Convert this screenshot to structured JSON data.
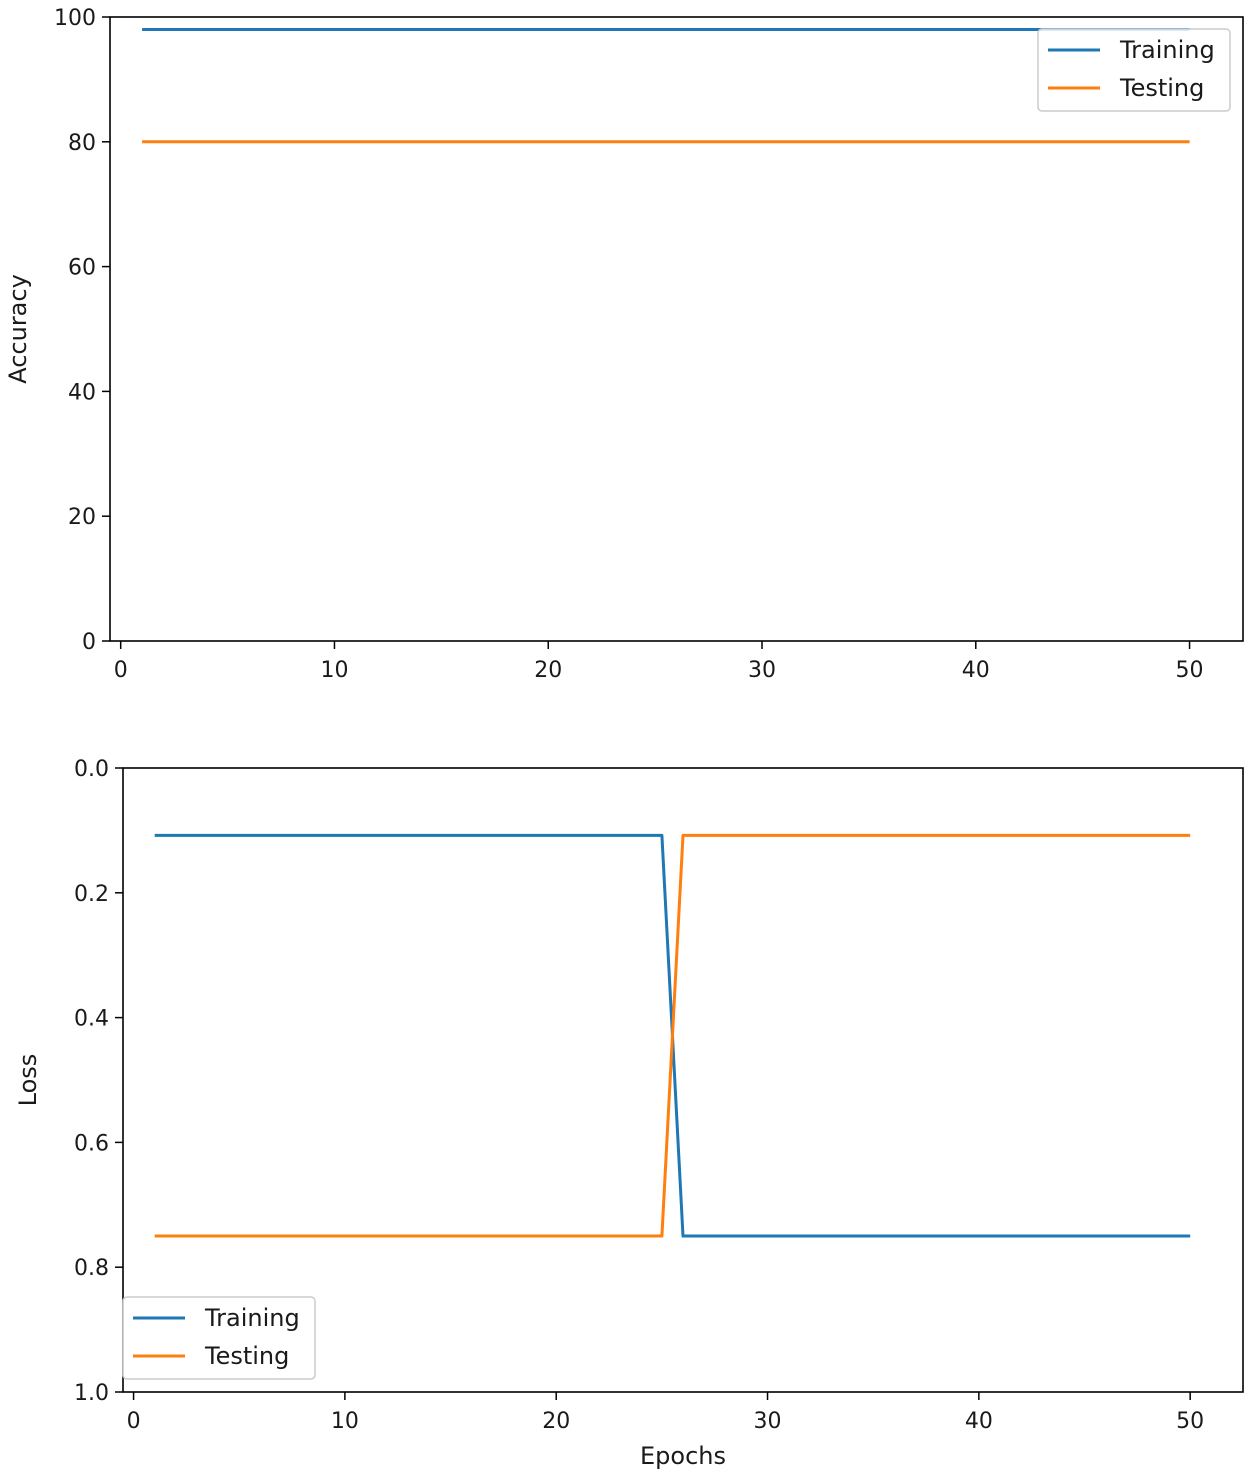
{
  "chart_data": [
    {
      "type": "line",
      "title": "",
      "xlabel": "",
      "ylabel": "Accuracy",
      "xlim": [
        -0.5,
        52.5
      ],
      "ylim": [
        0,
        100
      ],
      "y_inverted": false,
      "xticks": [
        0,
        10,
        20,
        30,
        40,
        50
      ],
      "yticks": [
        0,
        20,
        40,
        60,
        80,
        100
      ],
      "ytick_labels": [
        "0",
        "20",
        "40",
        "60",
        "80",
        "100"
      ],
      "grid": false,
      "legend_position": "top-right",
      "series": [
        {
          "name": "Training",
          "color": "#1f77b4",
          "x": [
            1,
            50
          ],
          "y": [
            98,
            98
          ]
        },
        {
          "name": "Testing",
          "color": "#ff7f0e",
          "x": [
            1,
            50
          ],
          "y": [
            80,
            80
          ]
        }
      ]
    },
    {
      "type": "line",
      "title": "",
      "xlabel": "Epochs",
      "ylabel": "Loss",
      "xlim": [
        -0.5,
        52.5
      ],
      "ylim": [
        0.0,
        1.0
      ],
      "y_inverted": true,
      "xticks": [
        0,
        10,
        20,
        30,
        40,
        50
      ],
      "yticks": [
        0.0,
        0.2,
        0.4,
        0.6,
        0.8,
        1.0
      ],
      "ytick_labels": [
        "0.0",
        "0.2",
        "0.4",
        "0.6",
        "0.8",
        "1.0"
      ],
      "grid": false,
      "legend_position": "bottom-left",
      "series": [
        {
          "name": "Training",
          "color": "#1f77b4",
          "x": [
            1,
            25,
            26,
            50
          ],
          "y": [
            0.108,
            0.108,
            0.75,
            0.75
          ]
        },
        {
          "name": "Testing",
          "color": "#ff7f0e",
          "x": [
            1,
            25,
            26,
            50
          ],
          "y": [
            0.75,
            0.75,
            0.108,
            0.108
          ]
        }
      ]
    }
  ]
}
